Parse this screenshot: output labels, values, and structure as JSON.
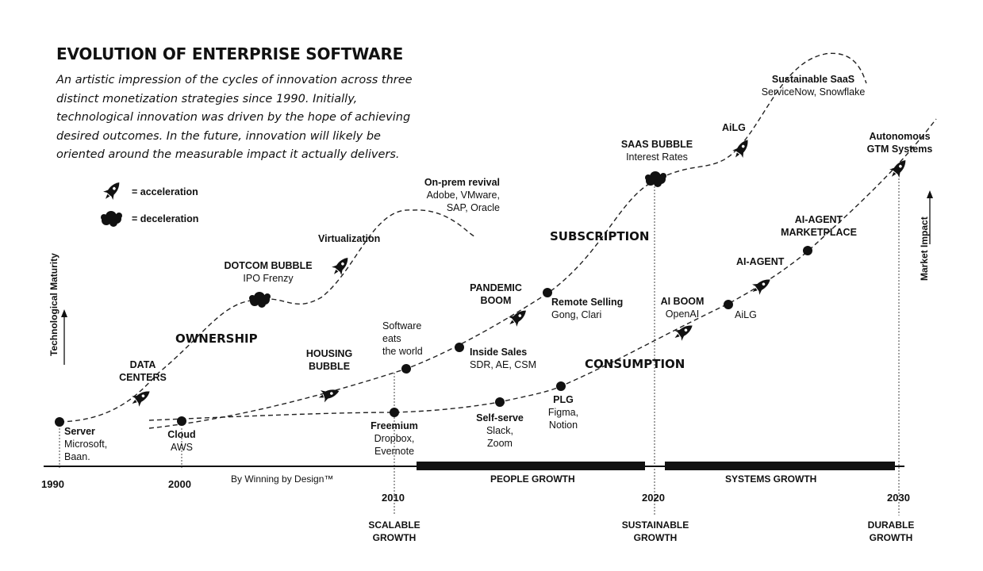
{
  "header": {
    "title": "EVOLUTION OF ENTERPRISE SOFTWARE",
    "subtitle": "An artistic impression of the cycles of innovation across three distinct monetization strategies since 1990. Initially, technological innovation was driven by the hope of achieving desired outcomes. In the future, innovation will likely be oriented around the measurable impact it actually delivers."
  },
  "legend": {
    "acceleration": "= acceleration",
    "deceleration": "= deceleration"
  },
  "axes": {
    "y_left": "Technological Maturity",
    "y_right": "Market Impact",
    "credit": "By Winning by Design™"
  },
  "timeline": {
    "years": [
      "1990",
      "2000",
      "2010",
      "2020",
      "2030"
    ],
    "bands": [
      "PEOPLE GROWTH",
      "SYSTEMS GROWTH"
    ],
    "milestones": [
      {
        "line1": "SCALABLE",
        "line2": "GROWTH"
      },
      {
        "line1": "SUSTAINABLE",
        "line2": "GROWTH"
      },
      {
        "line1": "DURABLE",
        "line2": "GROWTH"
      }
    ]
  },
  "eras": {
    "ownership": "OWNERSHIP",
    "subscription": "SUBSCRIPTION",
    "consumption": "CONSUMPTION"
  },
  "labels": {
    "server": {
      "title": "Server",
      "sub1": "Microsoft,",
      "sub2": "Baan."
    },
    "data_centers": {
      "line1": "DATA",
      "line2": "CENTERS"
    },
    "dotcom": {
      "title": "DOTCOM BUBBLE",
      "sub": "IPO Frenzy"
    },
    "virtualization": "Virtualization",
    "onprem": {
      "title": "On-prem revival",
      "sub1": "Adobe, VMware,",
      "sub2": "SAP, Oracle"
    },
    "cloud": {
      "title": "Cloud",
      "sub": "AWS"
    },
    "housing": {
      "line1": "HOUSING",
      "line2": "BUBBLE"
    },
    "software_eats": {
      "line1": "Software",
      "line2": "eats",
      "line3": "the",
      "line4": "world"
    },
    "freemium": {
      "title": "Freemium",
      "sub1": "Dropbox,",
      "sub2": "Evernote"
    },
    "inside_sales": {
      "title": "Inside Sales",
      "sub": "SDR, AE, CSM"
    },
    "self_serve": {
      "title": "Self-serve",
      "sub1": "Slack,",
      "sub2": "Zoom"
    },
    "pandemic": {
      "line1": "PANDEMIC",
      "line2": "BOOM"
    },
    "remote": {
      "title": "Remote Selling",
      "sub": "Gong, Clari"
    },
    "plg": {
      "title": "PLG",
      "sub1": "Figma,",
      "sub2": "Notion"
    },
    "saas_bubble": {
      "title": "SAAS BUBBLE",
      "sub": "Interest Rates"
    },
    "ailg_top": "AiLG",
    "sustainable_saas": {
      "title": "Sustainable SaaS",
      "sub": "ServiceNow, Snowflake"
    },
    "autonomous": {
      "line1": "Autonomous",
      "line2": "GTM Systems"
    },
    "ai_boom": {
      "title": "AI BOOM",
      "sub": "OpenAI"
    },
    "ailg_low": "AiLG",
    "ai_agent": "AI-AGENT",
    "ai_agent_mkt": {
      "line1": "AI-AGENT",
      "line2": "MARKETPLACE"
    }
  },
  "icons": [
    "rocket-icon",
    "cloud-icon"
  ]
}
